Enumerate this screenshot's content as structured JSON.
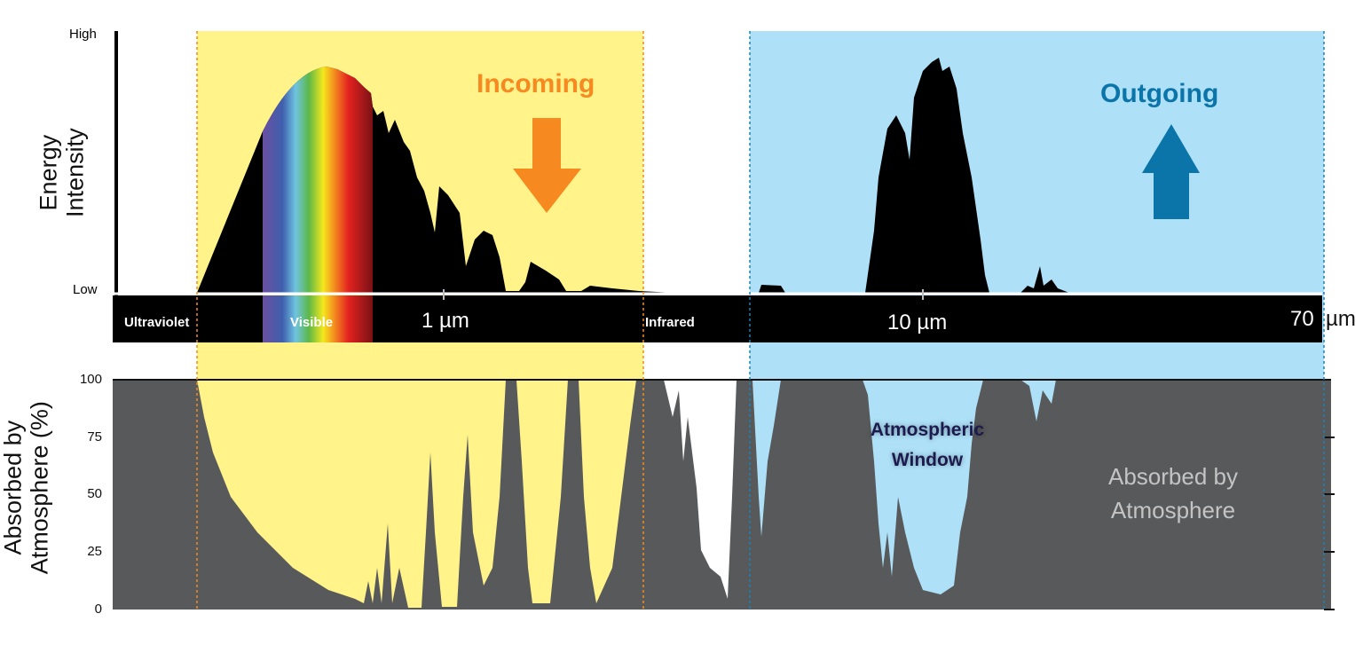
{
  "top_axis": {
    "label_line1": "Energy",
    "label_line2": "Intensity",
    "high": "High",
    "low": "Low"
  },
  "bands": {
    "ultraviolet": "Ultraviolet",
    "visible": "Visible",
    "infrared": "Infrared"
  },
  "wavelength_ticks": {
    "t1": "1 µm",
    "t2": "10 µm",
    "t3_value": "70",
    "t3_unit": "µm"
  },
  "incoming": {
    "label": "Incoming",
    "color": "#f6891f",
    "icon": "arrow-down-icon"
  },
  "outgoing": {
    "label": "Outgoing",
    "color": "#0b74a8",
    "icon": "arrow-up-icon"
  },
  "bottom_axis": {
    "label_line1": "Absorbed by",
    "label_line2": "Atmosphere (%)",
    "ticks": [
      "100",
      "75",
      "50",
      "25",
      "0"
    ]
  },
  "annotations": {
    "window_line1": "Atmospheric",
    "window_line2": "Window",
    "absorbed_line1": "Absorbed by",
    "absorbed_line2": "Atmosphere"
  },
  "colors": {
    "incoming_region": "#fff38a",
    "outgoing_region": "#aee1f8",
    "absorbed": "#58595b"
  }
}
